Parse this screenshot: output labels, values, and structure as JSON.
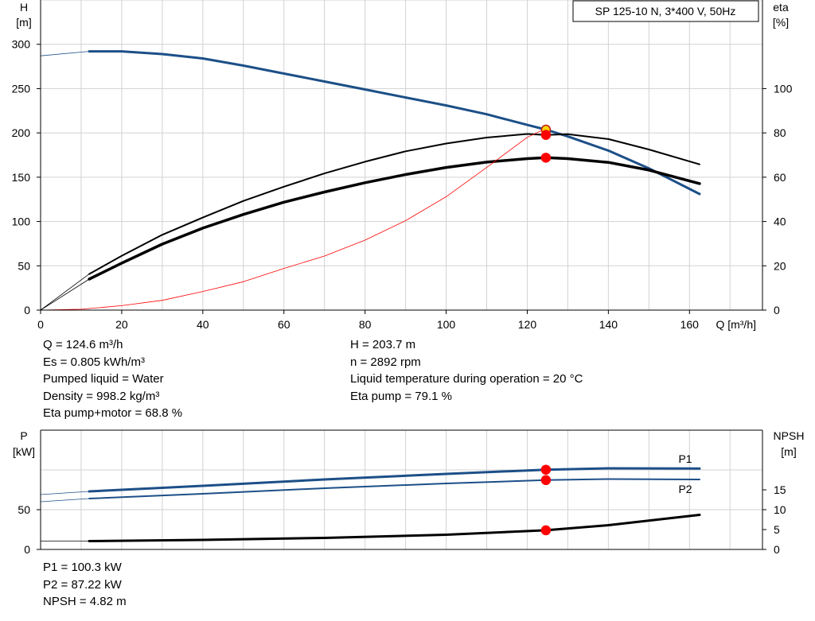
{
  "chart_data": [
    {
      "type": "line",
      "title": "SP 125-10 N, 3*400 V, 50Hz",
      "xlabel": "Q [m³/h]",
      "ylabel_left": [
        "H",
        "[m]"
      ],
      "ylabel_right": [
        "eta",
        "[%]"
      ],
      "xlim": [
        0,
        178
      ],
      "x_ticks": [
        0,
        20,
        40,
        60,
        80,
        100,
        120,
        140,
        160
      ],
      "ylim_left": [
        0,
        350
      ],
      "y_ticks_left": [
        0,
        50,
        100,
        150,
        200,
        250,
        300
      ],
      "ylim_right": [
        0,
        140
      ],
      "y_ticks_right": [
        0,
        20,
        40,
        60,
        80,
        100
      ],
      "grid": true,
      "series": [
        {
          "key": "head",
          "axis": "left",
          "color": "#1c4f87",
          "weight": 3,
          "x": [
            12,
            20,
            30,
            40,
            50,
            60,
            70,
            80,
            90,
            100,
            110,
            120,
            124.6,
            130,
            140,
            150,
            162.5
          ],
          "y": [
            292,
            292,
            289,
            284,
            276,
            267,
            258,
            249,
            240,
            231,
            221,
            209,
            203.7,
            196,
            180,
            160,
            131
          ],
          "ext_x": [
            0,
            12
          ],
          "ext_y": [
            287,
            292
          ]
        },
        {
          "key": "eta-pump",
          "axis": "right",
          "color": "#000000",
          "weight": 2,
          "x": [
            12,
            20,
            30,
            40,
            50,
            60,
            70,
            80,
            90,
            100,
            110,
            120,
            124.6,
            130,
            140,
            150,
            162.5
          ],
          "y": [
            16.3,
            24.5,
            34,
            41.8,
            49.3,
            55.7,
            61.7,
            67,
            71.7,
            75.2,
            77.9,
            79.5,
            79.1,
            79.4,
            77.2,
            72.5,
            65.8
          ],
          "ext_x": [
            0,
            12
          ],
          "ext_y": [
            0,
            16.3
          ]
        },
        {
          "key": "eta-pump-motor",
          "axis": "right",
          "color": "#000000",
          "weight": 3.5,
          "x": [
            12,
            20,
            30,
            40,
            50,
            60,
            70,
            80,
            90,
            100,
            110,
            120,
            124.6,
            130,
            140,
            150,
            162.5
          ],
          "y": [
            14,
            21.2,
            29.8,
            37,
            43.2,
            48.7,
            53.3,
            57.5,
            61.2,
            64.4,
            66.8,
            68.4,
            68.8,
            68.4,
            66.7,
            63.2,
            57.1
          ],
          "ext_x": [
            0,
            12
          ],
          "ext_y": [
            0,
            14
          ]
        },
        {
          "key": "system-curve",
          "axis": "left",
          "color": "#ff0000",
          "weight": 0.8,
          "x": [
            0,
            10,
            20,
            30,
            40,
            50,
            60,
            70,
            80,
            90,
            100,
            110,
            120,
            124.6
          ],
          "y": [
            0,
            1,
            5,
            11,
            21,
            32,
            47,
            61,
            79,
            101,
            128,
            161,
            195,
            205
          ]
        }
      ],
      "duty_points": [
        {
          "x": 124.6,
          "y": 203.7,
          "axis": "left",
          "fill": "#ffd400",
          "stroke": "#c01818"
        },
        {
          "x": 124.6,
          "y": 79.1,
          "axis": "right",
          "fill": "#ff0000",
          "stroke": "#ff0000"
        },
        {
          "x": 124.6,
          "y": 68.8,
          "axis": "right",
          "fill": "#ff0000",
          "stroke": "#ff0000"
        }
      ],
      "info_left": [
        "Q = 124.6 m³/h",
        "Es = 0.805 kWh/m³",
        "Pumped liquid = Water",
        "Density = 998.2 kg/m³",
        "Eta pump+motor = 68.8 %"
      ],
      "info_right": [
        "H = 203.7 m",
        "n = 2892 rpm",
        "Liquid temperature during operation = 20 °C",
        "Eta pump = 79.1 %"
      ]
    },
    {
      "type": "line",
      "xlim": [
        0,
        178
      ],
      "ylabel_left": [
        "P",
        "[kW]"
      ],
      "ylabel_right": [
        "NPSH",
        "[m]"
      ],
      "ylim_left": [
        0,
        150
      ],
      "y_ticks_left": [
        0,
        50
      ],
      "ylim_right": [
        0,
        30
      ],
      "y_ticks_right": [
        0,
        5,
        10,
        15
      ],
      "grid": true,
      "series": [
        {
          "key": "P1",
          "name": "P1",
          "axis": "left",
          "color": "#1c4f87",
          "weight": 3,
          "x": [
            12,
            40,
            70,
            100,
            124.6,
            140,
            162.5
          ],
          "y": [
            73,
            80,
            88,
            95,
            100.3,
            102,
            101.7
          ],
          "ext_x": [
            0,
            12
          ],
          "ext_y": [
            69,
            73
          ]
        },
        {
          "key": "P2",
          "name": "P2",
          "axis": "left",
          "color": "#1c4f87",
          "weight": 2,
          "x": [
            12,
            40,
            70,
            100,
            124.6,
            140,
            162.5
          ],
          "y": [
            64,
            70,
            77,
            83,
            87.22,
            88.5,
            88
          ],
          "ext_x": [
            0,
            12
          ],
          "ext_y": [
            60,
            64
          ]
        },
        {
          "key": "NPSH",
          "axis": "right",
          "color": "#000000",
          "weight": 3,
          "x": [
            12,
            40,
            70,
            100,
            124.6,
            140,
            162.5
          ],
          "y": [
            2.1,
            2.4,
            2.9,
            3.7,
            4.82,
            6.1,
            8.7
          ],
          "ext_x": [
            0,
            12
          ],
          "ext_y": [
            2.1,
            2.1
          ]
        }
      ],
      "duty_points": [
        {
          "x": 124.6,
          "y": 100.3,
          "axis": "left",
          "fill": "#ff0000",
          "stroke": "#ff0000"
        },
        {
          "x": 124.6,
          "y": 87.22,
          "axis": "left",
          "fill": "#ff0000",
          "stroke": "#ff0000"
        },
        {
          "x": 124.6,
          "y": 4.82,
          "axis": "right",
          "fill": "#ff0000",
          "stroke": "#ff0000"
        }
      ],
      "info_left": [
        "P1 = 100.3 kW",
        "P2 = 87.22 kW",
        "NPSH = 4.82 m"
      ]
    }
  ]
}
